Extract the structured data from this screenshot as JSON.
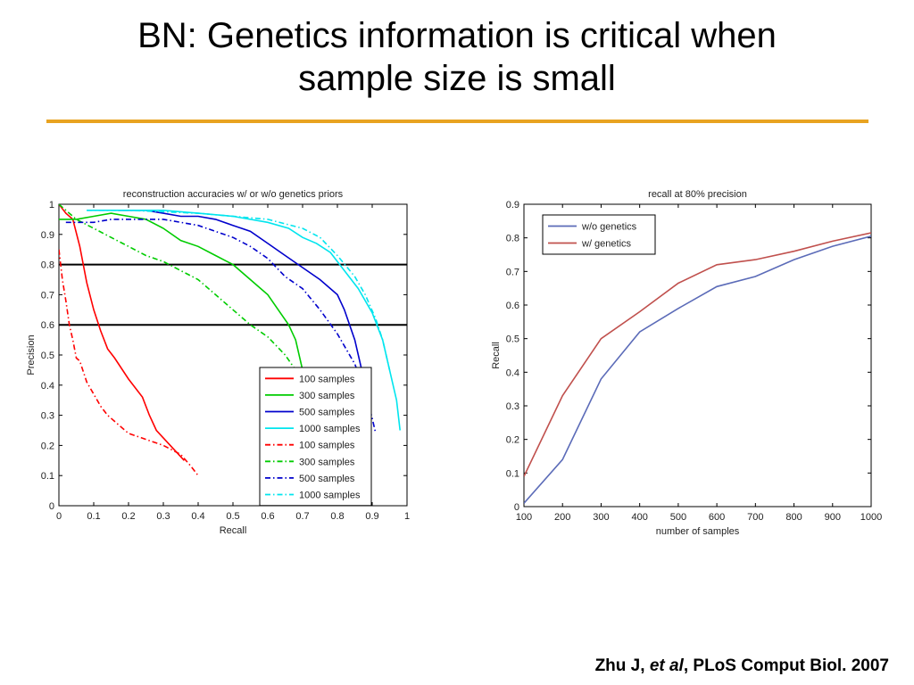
{
  "slide": {
    "title_line1": "BN: Genetics information is critical when",
    "title_line2": "sample size is small",
    "rule_color": "#e8a321"
  },
  "citation": {
    "author": "Zhu J, ",
    "etal": "et al",
    "journal": ", PLoS Comput Biol. 2007"
  },
  "chart_data": [
    {
      "type": "line",
      "title": "reconstruction accuracies w/ or w/o genetics priors",
      "xlabel": "Recall",
      "ylabel": "Precision",
      "xlim": [
        0,
        1
      ],
      "ylim": [
        0,
        1
      ],
      "xticks": [
        0,
        0.1,
        0.2,
        0.3,
        0.4,
        0.5,
        0.6,
        0.7,
        0.8,
        0.9,
        1
      ],
      "yticks": [
        0,
        0.1,
        0.2,
        0.3,
        0.4,
        0.5,
        0.6,
        0.7,
        0.8,
        0.9,
        1
      ],
      "grid": false,
      "legend_position": "bottom-right",
      "reference_lines": [
        0.8,
        0.6
      ],
      "series": [
        {
          "name": "100 samples",
          "color": "#ff0000",
          "dash": "solid",
          "x": [
            0,
            0.02,
            0.04,
            0.06,
            0.07,
            0.08,
            0.1,
            0.12,
            0.14,
            0.16,
            0.2,
            0.24,
            0.26,
            0.28,
            0.32,
            0.36
          ],
          "y": [
            1,
            0.97,
            0.95,
            0.86,
            0.8,
            0.74,
            0.65,
            0.58,
            0.52,
            0.49,
            0.42,
            0.36,
            0.3,
            0.25,
            0.2,
            0.15
          ]
        },
        {
          "name": "300 samples",
          "color": "#00cc00",
          "dash": "solid",
          "x": [
            0,
            0.05,
            0.1,
            0.15,
            0.2,
            0.25,
            0.3,
            0.35,
            0.4,
            0.45,
            0.5,
            0.55,
            0.6,
            0.63,
            0.66,
            0.68,
            0.7
          ],
          "y": [
            0.95,
            0.95,
            0.96,
            0.97,
            0.96,
            0.95,
            0.92,
            0.88,
            0.86,
            0.83,
            0.8,
            0.75,
            0.7,
            0.65,
            0.6,
            0.55,
            0.45
          ]
        },
        {
          "name": "500 samples",
          "color": "#0000cc",
          "dash": "solid",
          "x": [
            0.17,
            0.25,
            0.3,
            0.35,
            0.4,
            0.45,
            0.5,
            0.55,
            0.6,
            0.65,
            0.7,
            0.75,
            0.8,
            0.82,
            0.85,
            0.87
          ],
          "y": [
            0.98,
            0.98,
            0.97,
            0.96,
            0.96,
            0.95,
            0.93,
            0.91,
            0.87,
            0.83,
            0.79,
            0.75,
            0.7,
            0.65,
            0.55,
            0.45
          ]
        },
        {
          "name": "1000 samples",
          "color": "#00e5ee",
          "dash": "solid",
          "x": [
            0.08,
            0.2,
            0.3,
            0.4,
            0.5,
            0.6,
            0.66,
            0.7,
            0.74,
            0.78,
            0.82,
            0.86,
            0.9,
            0.93,
            0.95,
            0.97,
            0.98
          ],
          "y": [
            0.98,
            0.98,
            0.98,
            0.97,
            0.96,
            0.94,
            0.92,
            0.89,
            0.87,
            0.84,
            0.78,
            0.72,
            0.64,
            0.55,
            0.45,
            0.35,
            0.25
          ]
        },
        {
          "name": "100 samples",
          "color": "#ff0000",
          "dash": "dashdot",
          "x": [
            0,
            0.01,
            0.02,
            0.03,
            0.04,
            0.05,
            0.06,
            0.08,
            0.1,
            0.12,
            0.14,
            0.16,
            0.2,
            0.25,
            0.3,
            0.35,
            0.38,
            0.4
          ],
          "y": [
            0.85,
            0.75,
            0.68,
            0.6,
            0.55,
            0.49,
            0.48,
            0.41,
            0.37,
            0.33,
            0.3,
            0.28,
            0.24,
            0.22,
            0.2,
            0.17,
            0.13,
            0.1
          ]
        },
        {
          "name": "300 samples",
          "color": "#00cc00",
          "dash": "dashdot",
          "x": [
            0,
            0.05,
            0.1,
            0.15,
            0.2,
            0.25,
            0.3,
            0.35,
            0.4,
            0.45,
            0.5,
            0.55,
            0.6,
            0.65,
            0.68,
            0.7
          ],
          "y": [
            1,
            0.95,
            0.92,
            0.89,
            0.86,
            0.83,
            0.81,
            0.78,
            0.75,
            0.7,
            0.65,
            0.6,
            0.56,
            0.5,
            0.45,
            0.42
          ]
        },
        {
          "name": "500 samples",
          "color": "#0000cc",
          "dash": "dashdot",
          "x": [
            0.02,
            0.1,
            0.15,
            0.2,
            0.3,
            0.4,
            0.5,
            0.55,
            0.6,
            0.65,
            0.7,
            0.75,
            0.8,
            0.85,
            0.88,
            0.9,
            0.91
          ],
          "y": [
            0.94,
            0.94,
            0.95,
            0.95,
            0.95,
            0.93,
            0.89,
            0.86,
            0.82,
            0.76,
            0.72,
            0.65,
            0.57,
            0.47,
            0.38,
            0.29,
            0.24
          ]
        },
        {
          "name": "1000 samples",
          "color": "#00e5ee",
          "dash": "dashdot",
          "x": [
            0.08,
            0.2,
            0.4,
            0.6,
            0.7,
            0.75,
            0.8,
            0.85,
            0.88,
            0.91,
            0.93,
            0.95
          ],
          "y": [
            0.98,
            0.98,
            0.97,
            0.95,
            0.92,
            0.89,
            0.83,
            0.76,
            0.7,
            0.62,
            0.55,
            0.45
          ]
        }
      ]
    },
    {
      "type": "line",
      "title": "recall at 80% precision",
      "xlabel": "number of samples",
      "ylabel": "Recall",
      "xlim": [
        100,
        1000
      ],
      "ylim": [
        0,
        0.9
      ],
      "xticks": [
        100,
        200,
        300,
        400,
        500,
        600,
        700,
        800,
        900,
        1000
      ],
      "yticks": [
        0,
        0.1,
        0.2,
        0.3,
        0.4,
        0.5,
        0.6,
        0.7,
        0.8,
        0.9
      ],
      "grid": false,
      "legend_position": "top-left",
      "series": [
        {
          "name": "w/o genetics",
          "color": "#5b6bb8",
          "x": [
            100,
            200,
            300,
            400,
            500,
            600,
            700,
            800,
            900,
            1000
          ],
          "y": [
            0.01,
            0.14,
            0.38,
            0.52,
            0.59,
            0.655,
            0.685,
            0.735,
            0.775,
            0.805
          ]
        },
        {
          "name": "w/ genetics",
          "color": "#c0504d",
          "x": [
            100,
            200,
            300,
            400,
            500,
            600,
            700,
            800,
            900,
            1000
          ],
          "y": [
            0.09,
            0.33,
            0.5,
            0.58,
            0.665,
            0.72,
            0.735,
            0.76,
            0.79,
            0.815
          ]
        }
      ]
    }
  ]
}
